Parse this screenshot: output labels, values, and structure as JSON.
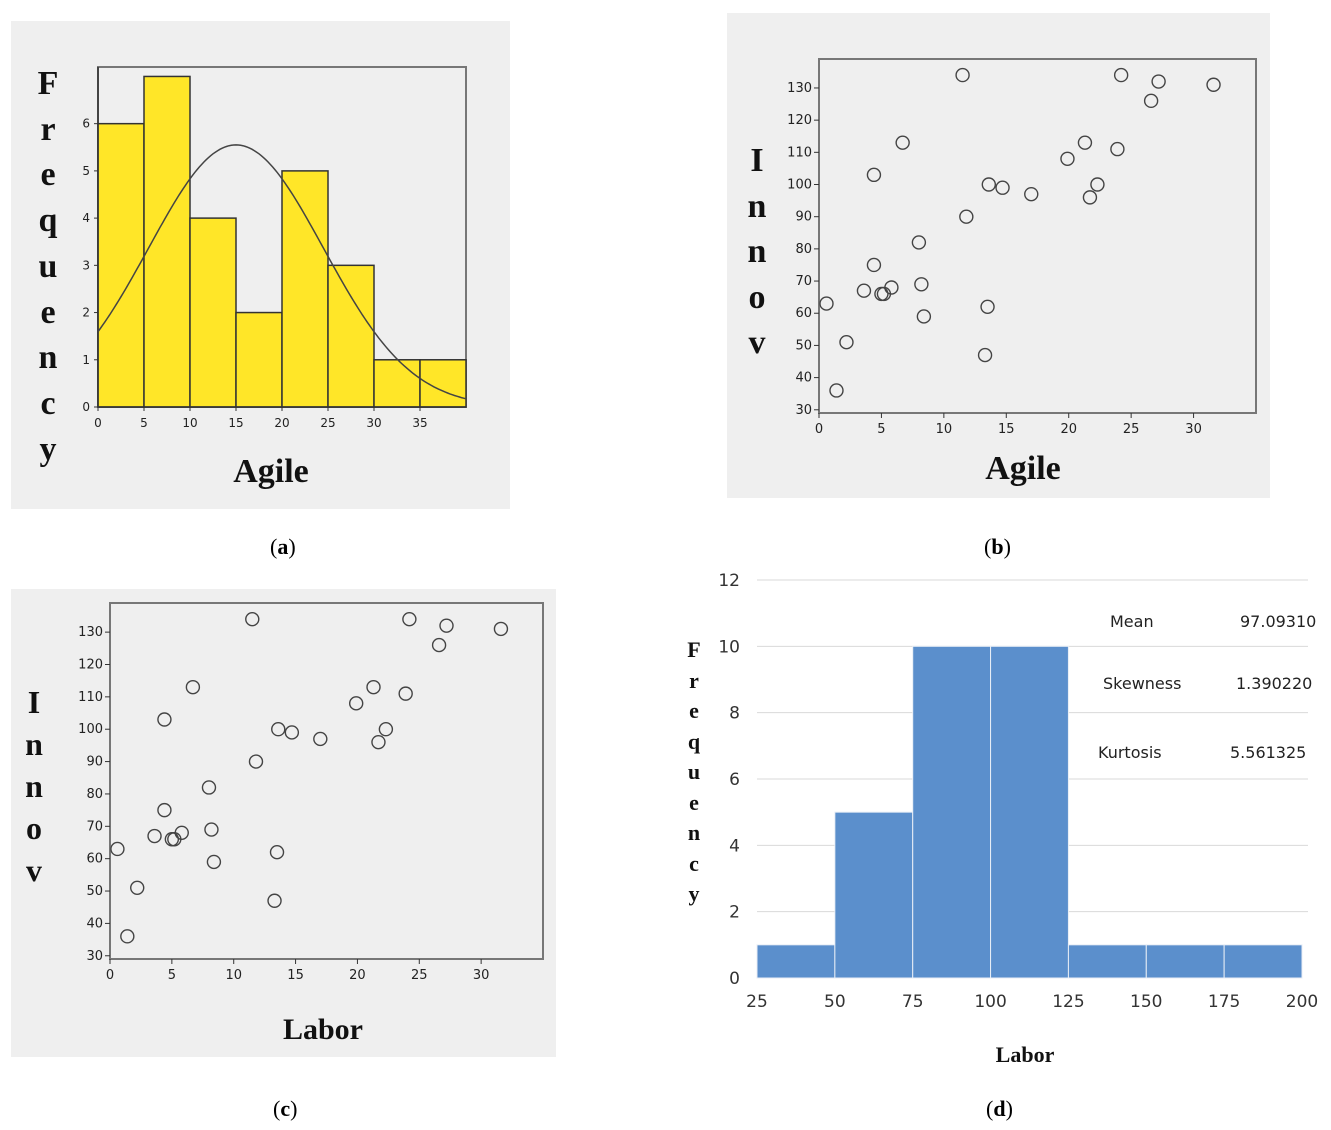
{
  "chart_data": [
    {
      "id": "a",
      "type": "bar",
      "caption_label": "a",
      "ylabel_letters": [
        "F",
        "r",
        "e",
        "q",
        "u",
        "e",
        "n",
        "c",
        "y"
      ],
      "xlabel": "Agile",
      "bin_edges": [
        0,
        5,
        10,
        15,
        20,
        25,
        30,
        35,
        40
      ],
      "values": [
        6,
        7,
        4,
        2,
        5,
        3,
        1,
        1
      ],
      "xticks": [
        0,
        5,
        10,
        15,
        20,
        25,
        30,
        35
      ],
      "yticks": [
        0,
        1,
        2,
        3,
        4,
        5,
        6
      ],
      "xlim": [
        0,
        40
      ],
      "ylim": [
        0,
        7.2
      ],
      "normal_curve": {
        "mean": 15,
        "sd": 9.5,
        "peak": 5.55
      },
      "colors": {
        "bar": "#ffe628",
        "bar_edge": "#333333",
        "bg": "#efefef",
        "curve": "#444444"
      }
    },
    {
      "id": "b",
      "type": "scatter",
      "caption_label": "b",
      "ylabel_letters": [
        "I",
        "n",
        "n",
        "o",
        "v"
      ],
      "xlabel": "Agile",
      "xticks": [
        0,
        5,
        10,
        15,
        20,
        25,
        30
      ],
      "yticks": [
        30,
        40,
        50,
        60,
        70,
        80,
        90,
        100,
        110,
        120,
        130
      ],
      "xlim": [
        0,
        35
      ],
      "ylim": [
        29,
        139
      ],
      "points": [
        [
          0.6,
          63
        ],
        [
          1.4,
          36
        ],
        [
          2.2,
          51
        ],
        [
          3.6,
          67
        ],
        [
          4.4,
          75
        ],
        [
          4.4,
          103
        ],
        [
          5,
          66
        ],
        [
          5.2,
          66
        ],
        [
          5.8,
          68
        ],
        [
          6.7,
          113
        ],
        [
          8,
          82
        ],
        [
          8.2,
          69
        ],
        [
          8.4,
          59
        ],
        [
          11.5,
          134
        ],
        [
          11.8,
          90
        ],
        [
          13.3,
          47
        ],
        [
          13.5,
          62
        ],
        [
          13.6,
          100
        ],
        [
          14.7,
          99
        ],
        [
          17,
          97
        ],
        [
          19.9,
          108
        ],
        [
          21.3,
          113
        ],
        [
          21.7,
          96
        ],
        [
          22.3,
          100
        ],
        [
          23.9,
          111
        ],
        [
          24.2,
          134
        ],
        [
          26.6,
          126
        ],
        [
          27.2,
          132
        ],
        [
          31.6,
          131
        ]
      ],
      "colors": {
        "bg": "#efefef",
        "point": "#444444"
      }
    },
    {
      "id": "c",
      "type": "scatter",
      "caption_label": "c",
      "ylabel_letters": [
        "I",
        "n",
        "n",
        "o",
        "v"
      ],
      "xlabel": "Labor",
      "xticks": [
        0,
        5,
        10,
        15,
        20,
        25,
        30
      ],
      "yticks": [
        30,
        40,
        50,
        60,
        70,
        80,
        90,
        100,
        110,
        120,
        130
      ],
      "xlim": [
        0,
        35
      ],
      "ylim": [
        29,
        139
      ],
      "points": [
        [
          0.6,
          63
        ],
        [
          1.4,
          36
        ],
        [
          2.2,
          51
        ],
        [
          3.6,
          67
        ],
        [
          4.4,
          75
        ],
        [
          4.4,
          103
        ],
        [
          5,
          66
        ],
        [
          5.2,
          66
        ],
        [
          5.8,
          68
        ],
        [
          6.7,
          113
        ],
        [
          8,
          82
        ],
        [
          8.2,
          69
        ],
        [
          8.4,
          59
        ],
        [
          11.5,
          134
        ],
        [
          11.8,
          90
        ],
        [
          13.3,
          47
        ],
        [
          13.5,
          62
        ],
        [
          13.6,
          100
        ],
        [
          14.7,
          99
        ],
        [
          17,
          97
        ],
        [
          19.9,
          108
        ],
        [
          21.3,
          113
        ],
        [
          21.7,
          96
        ],
        [
          22.3,
          100
        ],
        [
          23.9,
          111
        ],
        [
          24.2,
          134
        ],
        [
          26.6,
          126
        ],
        [
          27.2,
          132
        ],
        [
          31.6,
          131
        ]
      ],
      "colors": {
        "bg": "#efefef",
        "point": "#444444"
      }
    },
    {
      "id": "d",
      "type": "bar",
      "caption_label": "d",
      "ylabel_letters": [
        "F",
        "r",
        "e",
        "q",
        "u",
        "e",
        "n",
        "c",
        "y"
      ],
      "xlabel": "Labor",
      "bin_edges": [
        25,
        50,
        75,
        100,
        125,
        150,
        175,
        200
      ],
      "values": [
        1,
        5,
        10,
        10,
        1,
        1,
        1
      ],
      "xticks": [
        25,
        50,
        75,
        100,
        125,
        150,
        175,
        200
      ],
      "yticks": [
        0,
        2,
        4,
        6,
        8,
        10,
        12
      ],
      "xlim": [
        25,
        200
      ],
      "ylim": [
        0,
        12
      ],
      "stats": [
        {
          "name": "Mean",
          "value": "97.09310"
        },
        {
          "name": "Skewness",
          "value": "1.390220"
        },
        {
          "name": "Kurtosis",
          "value": "5.561325"
        }
      ],
      "colors": {
        "bar": "#5b8fcc",
        "bar_edge": "#e8eef6",
        "grid": "#d9d9d9"
      }
    }
  ]
}
